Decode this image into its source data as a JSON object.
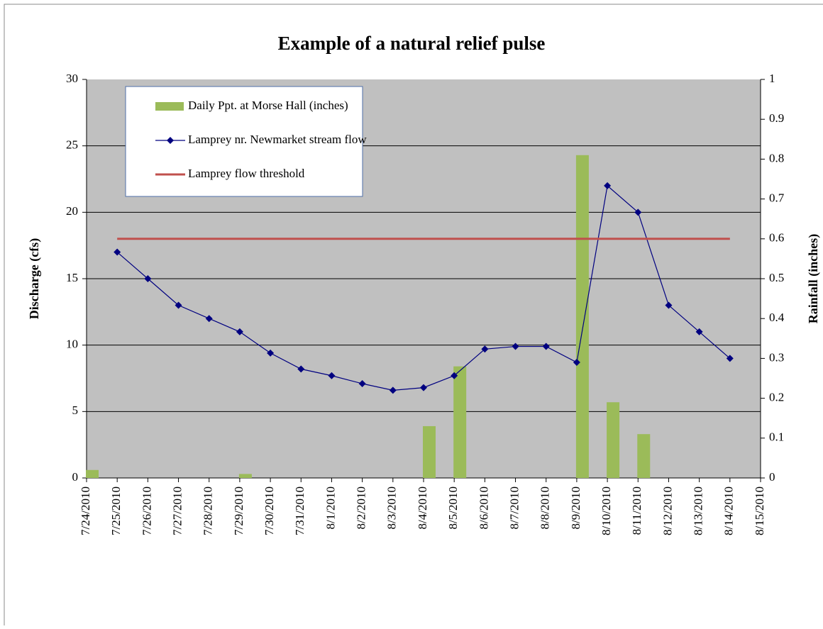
{
  "chart_data": {
    "type": "bar-line",
    "title": "Example of a natural relief pulse",
    "y_label": "Discharge (cfs)",
    "y2_label": "Rainfall (inches)",
    "categories": [
      "7/24/2010",
      "7/25/2010",
      "7/26/2010",
      "7/27/2010",
      "7/28/2010",
      "7/29/2010",
      "7/30/2010",
      "7/31/2010",
      "8/1/2010",
      "8/2/2010",
      "8/3/2010",
      "8/4/2010",
      "8/5/2010",
      "8/6/2010",
      "8/7/2010",
      "8/8/2010",
      "8/9/2010",
      "8/10/2010",
      "8/11/2010",
      "8/12/2010",
      "8/13/2010",
      "8/14/2010",
      "8/15/2010"
    ],
    "series": [
      {
        "name": "Daily Ppt. at Morse Hall (inches)",
        "type": "bar",
        "axis": "y2",
        "color": "#9bbb59",
        "values": [
          0.02,
          null,
          null,
          null,
          null,
          0.01,
          null,
          null,
          null,
          null,
          null,
          0.13,
          0.28,
          null,
          null,
          null,
          0.81,
          0.19,
          0.11,
          null,
          null,
          null,
          null
        ]
      },
      {
        "name": "Lamprey nr. Newmarket stream flow",
        "type": "line",
        "axis": "y",
        "color": "#000080",
        "marker": "diamond",
        "values": [
          null,
          17,
          15,
          13,
          12,
          11,
          9.4,
          8.2,
          7.7,
          7.1,
          6.6,
          6.8,
          7.7,
          9.7,
          9.9,
          9.9,
          8.7,
          22,
          20,
          13,
          11,
          9,
          null
        ]
      },
      {
        "name": "Lamprey flow threshold",
        "type": "line",
        "axis": "y",
        "color": "#c0504d",
        "values": [
          null,
          18,
          18,
          18,
          18,
          18,
          18,
          18,
          18,
          18,
          18,
          18,
          18,
          18,
          18,
          18,
          18,
          18,
          18,
          18,
          18,
          18,
          null
        ]
      }
    ],
    "ylim": [
      0,
      30
    ],
    "yticks": [
      0,
      5,
      10,
      15,
      20,
      25,
      30
    ],
    "y2lim": [
      0,
      1
    ],
    "y2ticks": [
      0,
      0.1,
      0.2,
      0.3,
      0.4,
      0.5,
      0.6,
      0.7,
      0.8,
      0.9,
      1
    ],
    "grid": true,
    "legend": "top-left"
  }
}
